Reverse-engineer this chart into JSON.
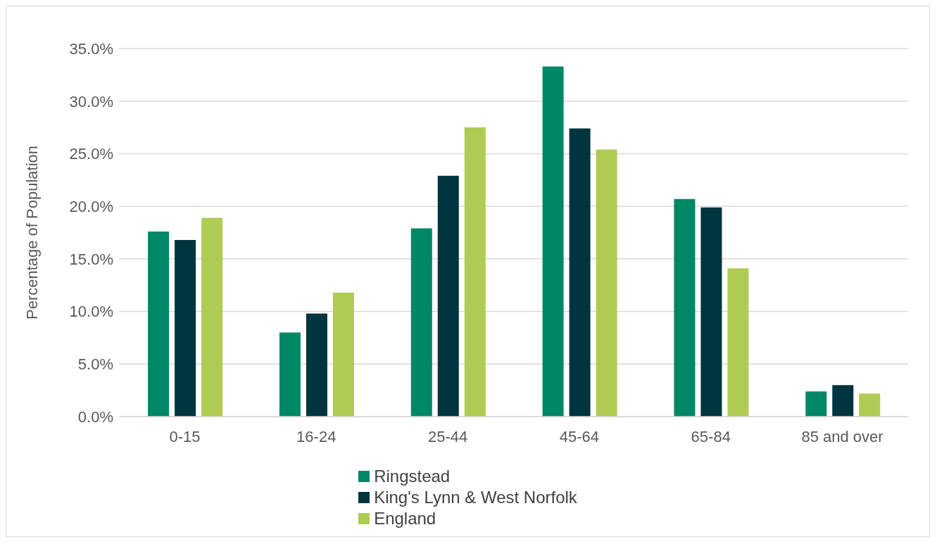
{
  "chart_data": {
    "type": "bar",
    "ylabel": "Percentage of Population",
    "categories": [
      "0-15",
      "16-24",
      "25-44",
      "45-64",
      "65-84",
      "85 and over"
    ],
    "series": [
      {
        "name": "Ringstead",
        "color": "#008766",
        "values": [
          17.6,
          8.0,
          17.9,
          33.3,
          20.7,
          2.4
        ]
      },
      {
        "name": "King's Lynn & West Norfolk",
        "color": "#00343e",
        "values": [
          16.8,
          9.8,
          22.9,
          27.4,
          19.9,
          3.0
        ]
      },
      {
        "name": "England",
        "color": "#b0cb54",
        "values": [
          18.9,
          11.8,
          27.5,
          25.4,
          14.1,
          2.2
        ]
      }
    ],
    "ylim": [
      0,
      35
    ],
    "yticks": [
      {
        "value": 0,
        "label": "0.0%"
      },
      {
        "value": 5,
        "label": "5.0%"
      },
      {
        "value": 10,
        "label": "10.0%"
      },
      {
        "value": 15,
        "label": "15.0%"
      },
      {
        "value": 20,
        "label": "20.0%"
      },
      {
        "value": 25,
        "label": "25.0%"
      },
      {
        "value": 30,
        "label": "30.0%"
      },
      {
        "value": 35,
        "label": "35.0%"
      }
    ],
    "grid": "y",
    "legend": "bottom"
  }
}
